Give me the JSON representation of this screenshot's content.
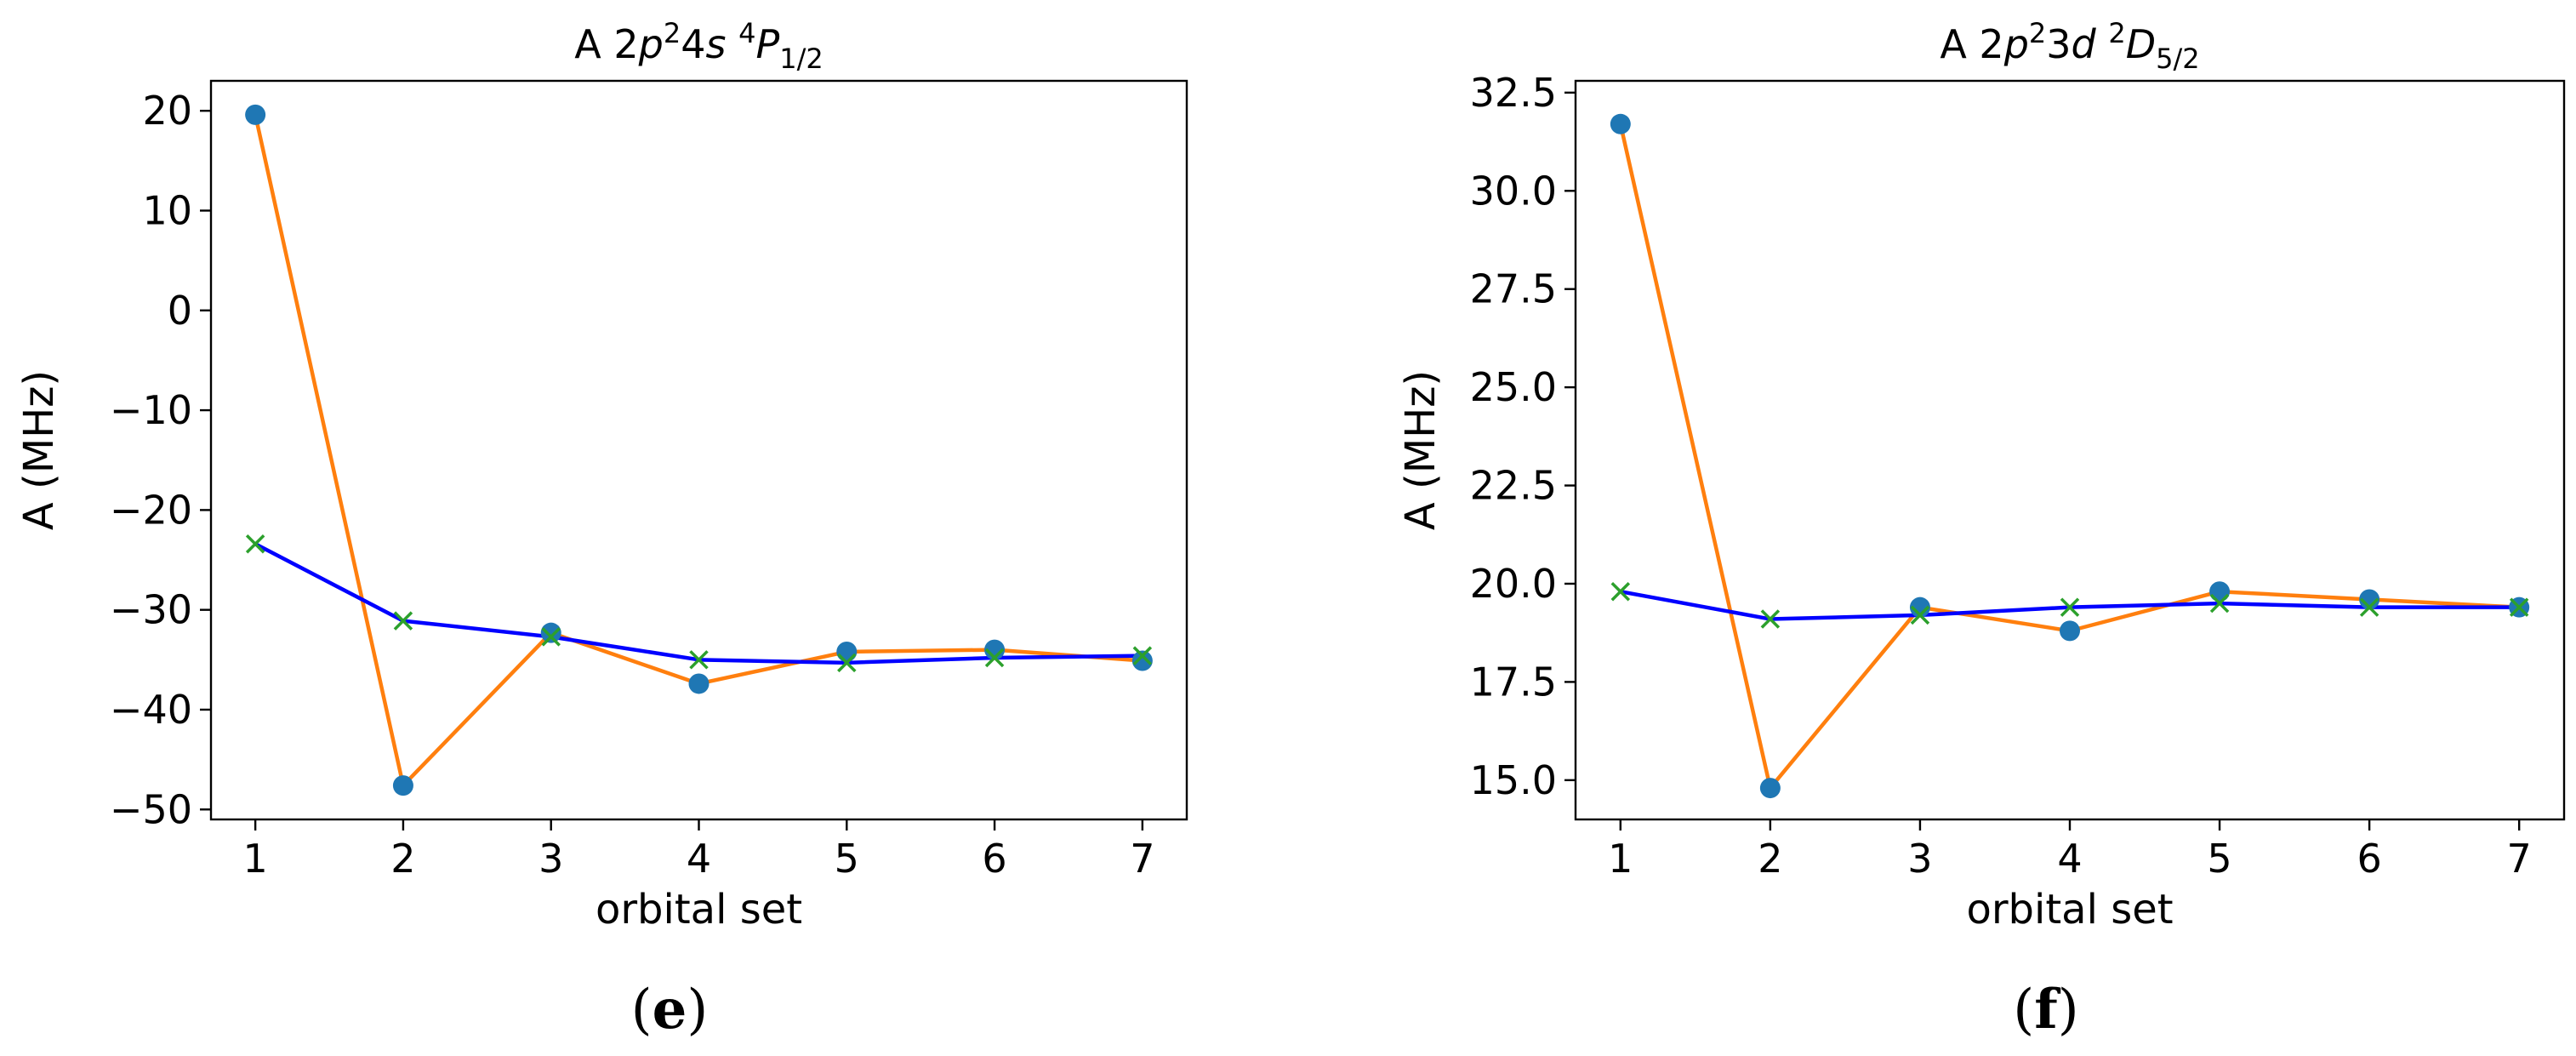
{
  "chart_data": [
    {
      "type": "line",
      "title": {
        "prefix": "A 2",
        "p": "p",
        "sup2": "2",
        "rest": "4",
        "s": "s",
        "sup2b": "4",
        "term": "P",
        "sub": "1/2"
      },
      "xlabel": "orbital set",
      "ylabel": "A (MHz)",
      "caption": {
        "open": "(",
        "letter": "e",
        "close": ")"
      },
      "x": [
        1,
        2,
        3,
        4,
        5,
        6,
        7
      ],
      "xlim": [
        0.7,
        7.3
      ],
      "ylim": [
        -51,
        23
      ],
      "yticks": [
        -50,
        -40,
        -30,
        -20,
        -10,
        0,
        10,
        20
      ],
      "ytick_labels": [
        "−50",
        "−40",
        "−30",
        "−20",
        "−10",
        "0",
        "10",
        "20"
      ],
      "xtick_labels": [
        "1",
        "2",
        "3",
        "4",
        "5",
        "6",
        "7"
      ],
      "series": [
        {
          "color": "#ff7f0e",
          "marker": "circle",
          "marker_color": "#1f77b4",
          "values": [
            19.6,
            -47.6,
            -32.3,
            -37.4,
            -34.2,
            -34.0,
            -35.1
          ]
        },
        {
          "color": "#0000ff",
          "marker": "x",
          "marker_color": "#2ca02c",
          "values": [
            -23.4,
            -31.1,
            -32.7,
            -35.0,
            -35.3,
            -34.8,
            -34.6
          ]
        }
      ]
    },
    {
      "type": "line",
      "title": {
        "prefix": "A 2",
        "p": "p",
        "sup2": "2",
        "rest": "3",
        "s": "d",
        "sup2b": "2",
        "term": "D",
        "sub": "5/2"
      },
      "xlabel": "orbital set",
      "ylabel": "A (MHz)",
      "caption": {
        "open": "(",
        "letter": "f",
        "close": ")"
      },
      "x": [
        1,
        2,
        3,
        4,
        5,
        6,
        7
      ],
      "xlim": [
        0.7,
        7.3
      ],
      "ylim": [
        14.0,
        32.8
      ],
      "yticks": [
        15.0,
        17.5,
        20.0,
        22.5,
        25.0,
        27.5,
        30.0,
        32.5
      ],
      "ytick_labels": [
        "15.0",
        "17.5",
        "20.0",
        "22.5",
        "25.0",
        "27.5",
        "30.0",
        "32.5"
      ],
      "xtick_labels": [
        "1",
        "2",
        "3",
        "4",
        "5",
        "6",
        "7"
      ],
      "series": [
        {
          "color": "#ff7f0e",
          "marker": "circle",
          "marker_color": "#1f77b4",
          "values": [
            31.7,
            14.8,
            19.4,
            18.8,
            19.8,
            19.6,
            19.4
          ]
        },
        {
          "color": "#0000ff",
          "marker": "x",
          "marker_color": "#2ca02c",
          "values": [
            19.8,
            19.1,
            19.2,
            19.4,
            19.5,
            19.4,
            19.4
          ]
        }
      ]
    }
  ]
}
